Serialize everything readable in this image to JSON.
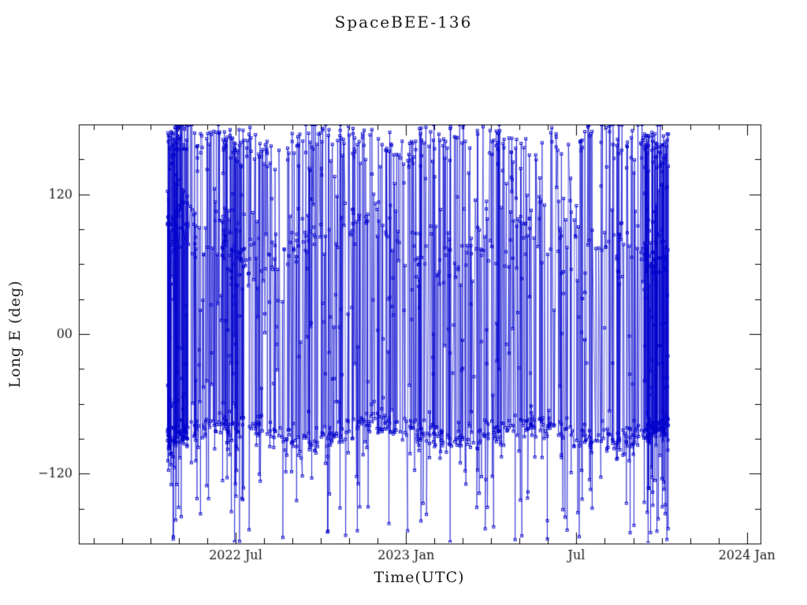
{
  "chart_data": {
    "type": "line",
    "title": "SpaceBEE-136",
    "xlabel": "Time(UTC)",
    "ylabel": "Long E (deg)",
    "x_axis_range": [
      2022.04,
      2024.04
    ],
    "ylim": [
      -180,
      180
    ],
    "x_ticks": [
      {
        "value": 2022.5,
        "label": "2022 Jul"
      },
      {
        "value": 2023.0,
        "label": "2023 Jan"
      },
      {
        "value": 2023.5,
        "label": "Jul"
      },
      {
        "value": 2024.0,
        "label": "2024 Jan"
      }
    ],
    "x_minor_ticks_per_year": 12,
    "y_ticks": [
      {
        "value": 120,
        "label": "120"
      },
      {
        "value": 0,
        "label": "00"
      },
      {
        "value": -120,
        "label": "−120"
      }
    ],
    "y_minor_tick_interval": 30,
    "grid": false,
    "legend": "none",
    "marker": "open-square",
    "line_color": "#0000cc",
    "axis_color": "#000000",
    "text_color": "#1a1a1a",
    "background": "#ffffff",
    "series_synthesis": {
      "note": "Dense satellite sub-longitude samples with +/-180 wrap-around; individual points are not resolvable at screenshot scale, so the point cloud is regenerated deterministically from this statistical spec read off the figure.",
      "seed": 136,
      "base_points": 1400,
      "time_span": [
        2022.3,
        2023.77
      ],
      "clumps": [
        {
          "range": [
            2022.3,
            2022.36
          ],
          "points": 140
        },
        {
          "range": [
            2022.46,
            2022.52
          ],
          "points": 80
        },
        {
          "range": [
            2023.7,
            2023.77
          ],
          "points": 180
        }
      ],
      "mixture": [
        {
          "weight": 0.32,
          "kind": "band",
          "center": -85,
          "sigma": 6,
          "wave_amp": 7,
          "wave_period": 0.45,
          "wave_phase": 1.2
        },
        {
          "weight": 0.17,
          "kind": "band",
          "center": 82,
          "sigma": 13,
          "wave_amp": 18,
          "wave_period": 0.55,
          "wave_phase": 4.4
        },
        {
          "weight": 0.2,
          "kind": "band",
          "center": 164,
          "sigma": 10,
          "wave_amp": 6,
          "wave_period": 0.4,
          "wave_phase": 2.0
        },
        {
          "weight": 0.31,
          "kind": "uniform",
          "min": -180,
          "max": 180
        }
      ]
    }
  }
}
